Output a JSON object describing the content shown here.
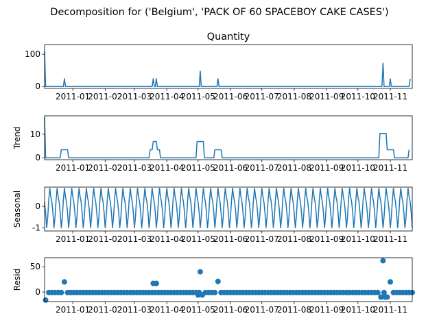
{
  "figure_title": "Decomposition for ('Belgium', 'PACK OF 60 SPACEBOY CAKE CASES')",
  "colors": {
    "series": "#1f77b4",
    "axes": "#000000",
    "background": "#ffffff"
  },
  "chart_data": [
    {
      "type": "line",
      "title": "Quantity",
      "ylabel": "",
      "xlabel": "",
      "xlim": [
        "2010-12-05",
        "2011-11-22"
      ],
      "ylim": [
        -6,
        130
      ],
      "yticks": [
        0,
        100
      ],
      "xticks": [
        "2011-01",
        "2011-02",
        "2011-03",
        "2011-04",
        "2011-05",
        "2011-06",
        "2011-07",
        "2011-08",
        "2011-09",
        "2011-10",
        "2011-11"
      ],
      "grid": false,
      "x": [
        "2010-12-05",
        "2010-12-06",
        "2010-12-23",
        "2010-12-24",
        "2010-12-25",
        "2011-03-18",
        "2011-03-19",
        "2011-03-20",
        "2011-03-21",
        "2011-03-22",
        "2011-03-23",
        "2011-05-02",
        "2011-05-03",
        "2011-05-04",
        "2011-05-19",
        "2011-05-20",
        "2011-05-21",
        "2011-10-24",
        "2011-10-25",
        "2011-10-26",
        "2011-10-31",
        "2011-11-01",
        "2011-11-02",
        "2011-11-19",
        "2011-11-20"
      ],
      "series": [
        {
          "values": [
            110,
            0,
            0,
            24,
            0,
            0,
            24,
            0,
            0,
            24,
            0,
            0,
            48,
            0,
            0,
            24,
            0,
            0,
            72,
            0,
            0,
            24,
            0,
            0,
            24
          ]
        }
      ]
    },
    {
      "type": "line",
      "title": "",
      "ylabel": "Trend",
      "xlabel": "",
      "xlim": [
        "2010-12-05",
        "2011-11-22"
      ],
      "ylim": [
        -0.8,
        17.8
      ],
      "yticks": [
        0,
        10
      ],
      "xticks": [
        "2011-01",
        "2011-02",
        "2011-03",
        "2011-04",
        "2011-05",
        "2011-06",
        "2011-07",
        "2011-08",
        "2011-09",
        "2011-10",
        "2011-11"
      ],
      "grid": false,
      "x": [
        "2010-12-05",
        "2010-12-06",
        "2010-12-20",
        "2010-12-21",
        "2010-12-27",
        "2010-12-28",
        "2011-03-15",
        "2011-03-16",
        "2011-03-18",
        "2011-03-19",
        "2011-03-22",
        "2011-03-23",
        "2011-03-25",
        "2011-03-26",
        "2011-04-29",
        "2011-04-30",
        "2011-05-06",
        "2011-05-07",
        "2011-05-16",
        "2011-05-17",
        "2011-05-23",
        "2011-05-24",
        "2011-10-21",
        "2011-10-22",
        "2011-10-28",
        "2011-10-29",
        "2011-11-04",
        "2011-11-05",
        "2011-11-18",
        "2011-11-19"
      ],
      "series": [
        {
          "values": [
            17.2,
            0,
            0,
            3.4,
            3.4,
            0,
            0,
            3.4,
            3.4,
            6.9,
            6.9,
            3.4,
            3.4,
            0,
            0,
            6.9,
            6.9,
            0,
            0,
            3.4,
            3.4,
            0,
            0,
            10.3,
            10.3,
            3.4,
            3.4,
            0,
            0,
            3.4
          ]
        }
      ]
    },
    {
      "type": "line",
      "title": "",
      "ylabel": "Seasonal",
      "xlabel": "",
      "xlim": [
        "2010-12-05",
        "2011-11-22"
      ],
      "ylim": [
        -1.15,
        0.9
      ],
      "yticks": [
        -1,
        0
      ],
      "xticks": [
        "2011-01",
        "2011-02",
        "2011-03",
        "2011-04",
        "2011-05",
        "2011-06",
        "2011-07",
        "2011-08",
        "2011-09",
        "2011-10",
        "2011-11"
      ],
      "grid": false,
      "start": "2010-12-05",
      "pattern": [
        0.2,
        -0.3,
        -1.0,
        -0.5,
        0.3,
        0.85,
        0.45
      ],
      "end": "2011-11-22"
    },
    {
      "type": "scatter",
      "title": "",
      "ylabel": "Resid",
      "xlabel": "",
      "xlim": [
        "2010-12-05",
        "2011-11-22"
      ],
      "ylim": [
        -19,
        68
      ],
      "yticks": [
        0,
        50
      ],
      "xticks": [
        "2011-01",
        "2011-02",
        "2011-03",
        "2011-04",
        "2011-05",
        "2011-06",
        "2011-07",
        "2011-08",
        "2011-09",
        "2011-10",
        "2011-11"
      ],
      "grid": false,
      "start": "2010-12-06",
      "end": "2011-11-22",
      "step_days": 3,
      "baseline": -1,
      "outliers": [
        {
          "x": "2010-12-06",
          "y": -16
        },
        {
          "x": "2010-12-24",
          "y": 20
        },
        {
          "x": "2011-03-19",
          "y": 17
        },
        {
          "x": "2011-03-22",
          "y": 17
        },
        {
          "x": "2011-05-03",
          "y": 40
        },
        {
          "x": "2011-05-20",
          "y": 21
        },
        {
          "x": "2011-10-25",
          "y": 62
        },
        {
          "x": "2011-11-01",
          "y": 20
        },
        {
          "x": "2011-10-23",
          "y": -10
        },
        {
          "x": "2011-10-27",
          "y": -10
        },
        {
          "x": "2011-10-29",
          "y": -10
        },
        {
          "x": "2011-05-01",
          "y": -6
        },
        {
          "x": "2011-05-05",
          "y": -6
        }
      ]
    }
  ]
}
